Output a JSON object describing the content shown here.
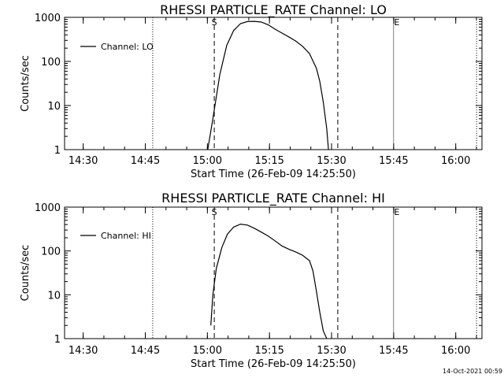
{
  "chart_data": [
    {
      "type": "line",
      "title": "RHESSI PARTICLE_RATE Channel: LO",
      "xlabel": "Start Time (26-Feb-09 14:25:50)",
      "ylabel": "Counts/sec",
      "yscale": "log",
      "ylim": [
        1,
        1000
      ],
      "y_tick_labels": [
        "1",
        "10",
        "100",
        "1000"
      ],
      "y_tick_values": [
        1,
        10,
        100,
        1000
      ],
      "x_tick_labels": [
        "14:30",
        "14:45",
        "15:00",
        "15:15",
        "15:30",
        "15:45",
        "16:00"
      ],
      "x_tick_values": [
        270,
        1170,
        2070,
        2970,
        3870,
        4770,
        5670
      ],
      "xlim": [
        0,
        6050
      ],
      "legend": {
        "label": "Channel: LO",
        "placement": "top-left"
      },
      "markers": {
        "start_label": "S",
        "end_label": "E"
      },
      "x_units": "seconds after 14:25:50",
      "series": [
        {
          "name": "Channel: LO",
          "x": [
            2075,
            2150,
            2250,
            2350,
            2450,
            2550,
            2650,
            2750,
            2850,
            2950,
            3050,
            3150,
            3250,
            3350,
            3450,
            3550,
            3650,
            3700,
            3750,
            3800,
            3825
          ],
          "y": [
            1,
            5,
            50,
            230,
            500,
            720,
            800,
            810,
            780,
            680,
            540,
            440,
            360,
            290,
            220,
            150,
            70,
            35,
            12,
            3,
            1
          ]
        }
      ],
      "vlines_dashed": [
        2170,
        3960
      ],
      "vlines_dotted": [
        1278,
        5972
      ],
      "vlines_solid": [
        4770
      ]
    },
    {
      "type": "line",
      "title": "RHESSI PARTICLE_RATE Channel: HI",
      "xlabel": "Start Time (26-Feb-09 14:25:50)",
      "ylabel": "Counts/sec",
      "yscale": "log",
      "ylim": [
        1,
        1000
      ],
      "y_tick_labels": [
        "1",
        "10",
        "100",
        "1000"
      ],
      "y_tick_values": [
        1,
        10,
        100,
        1000
      ],
      "x_tick_labels": [
        "14:30",
        "14:45",
        "15:00",
        "15:15",
        "15:30",
        "15:45",
        "16:00"
      ],
      "x_tick_values": [
        270,
        1170,
        2070,
        2970,
        3870,
        4770,
        5670
      ],
      "xlim": [
        0,
        6050
      ],
      "legend": {
        "label": "Channel: HI",
        "placement": "top-left"
      },
      "markers": {
        "start_label": "S",
        "end_label": "E"
      },
      "x_units": "seconds after 14:25:50",
      "series": [
        {
          "name": "Channel: HI",
          "x": [
            2120,
            2150,
            2200,
            2280,
            2360,
            2450,
            2550,
            2650,
            2750,
            2850,
            2950,
            3050,
            3150,
            3250,
            3350,
            3450,
            3550,
            3600,
            3650,
            3700,
            3750,
            3800
          ],
          "y": [
            2,
            10,
            40,
            120,
            240,
            350,
            410,
            390,
            330,
            270,
            220,
            170,
            130,
            110,
            95,
            80,
            60,
            35,
            12,
            4,
            1.5,
            1
          ]
        }
      ],
      "vlines_dashed": [
        2170,
        3960
      ],
      "vlines_dotted": [
        1278,
        5972
      ],
      "vlines_solid": [
        4770
      ]
    }
  ],
  "footer": {
    "timestamp": "14-Oct-2021 00:59"
  }
}
